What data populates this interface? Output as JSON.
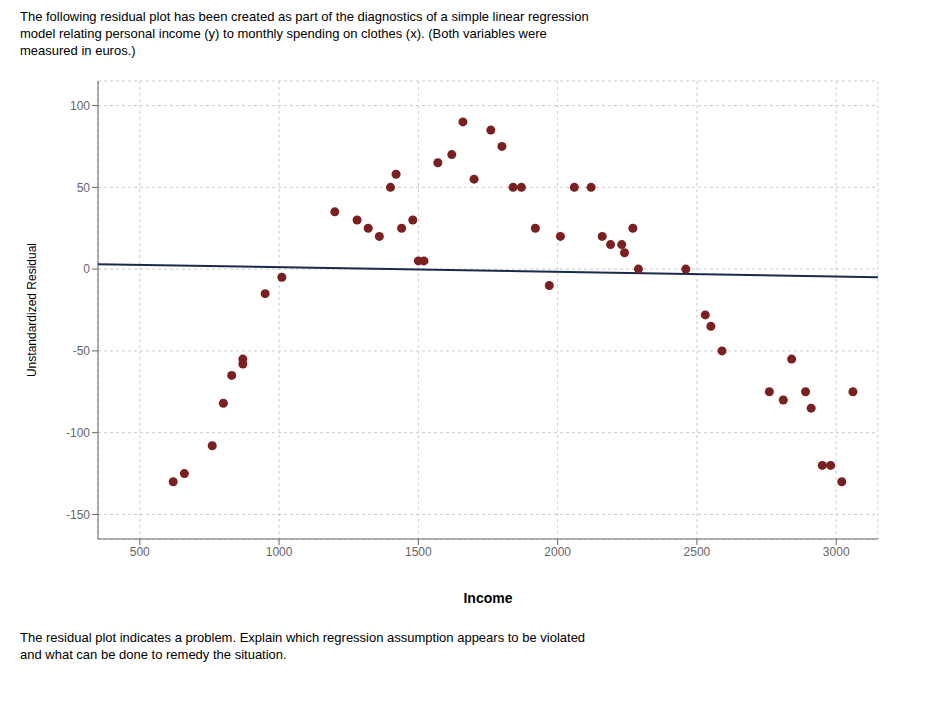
{
  "chart_data": {
    "type": "scatter",
    "title": "The following residual plot has been created as part of the diagnostics of a simple linear regression\nmodel relating personal income (y) to monthly spending on clothes (x). (Both variables were\nmeasured in euros.)",
    "annotations": [
      "The residual plot indicates a problem. Explain which regression assumption appears to be violated\nand what can be done to remedy the situation."
    ],
    "x_label": "Income",
    "y_label": "Unstandardized Residual",
    "xlim": [
      350,
      3150
    ],
    "ylim": [
      -165,
      115
    ],
    "xticks": [
      500,
      1000,
      1500,
      2000,
      2500,
      3000
    ],
    "yticks": [
      -150,
      -100,
      -50,
      0,
      50,
      100
    ],
    "grid": true,
    "series": [
      {
        "type": "line",
        "color": "#1a2a4a",
        "x": [
          350,
          3150
        ],
        "values": [
          3,
          -5
        ]
      },
      {
        "type": "scatter",
        "color": "#7b2020",
        "x": [
          620,
          660,
          760,
          800,
          830,
          870,
          870,
          950,
          1010,
          1200,
          1280,
          1320,
          1360,
          1400,
          1420,
          1440,
          1480,
          1500,
          1520,
          1570,
          1620,
          1660,
          1700,
          1760,
          1800,
          1840,
          1870,
          1920,
          1970,
          2010,
          2060,
          2120,
          2160,
          2190,
          2230,
          2240,
          2270,
          2290,
          2460,
          2530,
          2550,
          2590,
          2760,
          2810,
          2840,
          2890,
          2910,
          2950,
          2980,
          3020,
          3060
        ],
        "values": [
          -130,
          -125,
          -108,
          -82,
          -65,
          -58,
          -55,
          -15,
          -5,
          35,
          30,
          25,
          20,
          50,
          58,
          25,
          30,
          5,
          5,
          65,
          70,
          90,
          55,
          85,
          75,
          50,
          50,
          25,
          -10,
          20,
          50,
          50,
          20,
          15,
          15,
          10,
          25,
          0,
          0,
          -28,
          -35,
          -50,
          -75,
          -80,
          -55,
          -75,
          -85,
          -120,
          -120,
          -130,
          -75
        ]
      }
    ]
  }
}
